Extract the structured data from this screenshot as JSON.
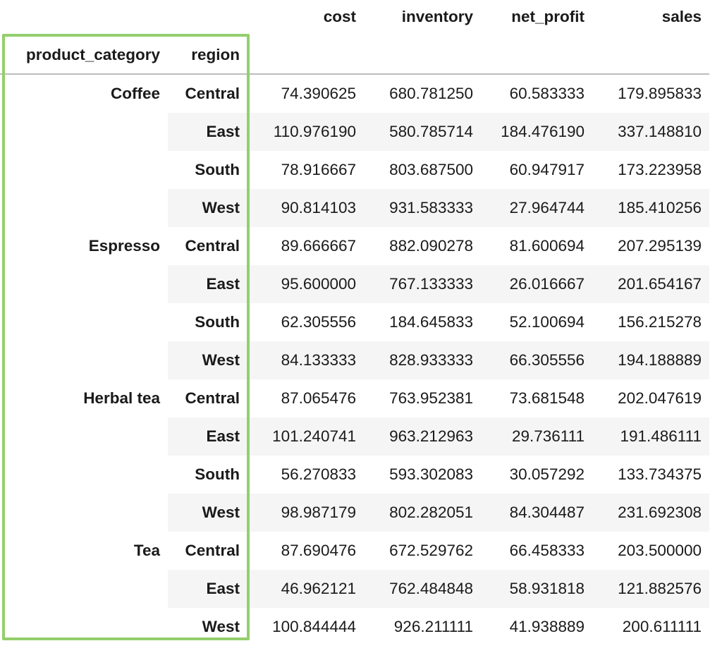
{
  "columns": {
    "cost": "cost",
    "inventory": "inventory",
    "net_profit": "net_profit",
    "sales": "sales"
  },
  "index_names": {
    "level0": "product_category",
    "level1": "region"
  },
  "rows": [
    {
      "category": "Coffee",
      "region": "Central",
      "cost": "74.390625",
      "inventory": "680.781250",
      "net_profit": "60.583333",
      "sales": "179.895833"
    },
    {
      "category": "",
      "region": "East",
      "cost": "110.976190",
      "inventory": "580.785714",
      "net_profit": "184.476190",
      "sales": "337.148810"
    },
    {
      "category": "",
      "region": "South",
      "cost": "78.916667",
      "inventory": "803.687500",
      "net_profit": "60.947917",
      "sales": "173.223958"
    },
    {
      "category": "",
      "region": "West",
      "cost": "90.814103",
      "inventory": "931.583333",
      "net_profit": "27.964744",
      "sales": "185.410256"
    },
    {
      "category": "Espresso",
      "region": "Central",
      "cost": "89.666667",
      "inventory": "882.090278",
      "net_profit": "81.600694",
      "sales": "207.295139"
    },
    {
      "category": "",
      "region": "East",
      "cost": "95.600000",
      "inventory": "767.133333",
      "net_profit": "26.016667",
      "sales": "201.654167"
    },
    {
      "category": "",
      "region": "South",
      "cost": "62.305556",
      "inventory": "184.645833",
      "net_profit": "52.100694",
      "sales": "156.215278"
    },
    {
      "category": "",
      "region": "West",
      "cost": "84.133333",
      "inventory": "828.933333",
      "net_profit": "66.305556",
      "sales": "194.188889"
    },
    {
      "category": "Herbal tea",
      "region": "Central",
      "cost": "87.065476",
      "inventory": "763.952381",
      "net_profit": "73.681548",
      "sales": "202.047619"
    },
    {
      "category": "",
      "region": "East",
      "cost": "101.240741",
      "inventory": "963.212963",
      "net_profit": "29.736111",
      "sales": "191.486111"
    },
    {
      "category": "",
      "region": "South",
      "cost": "56.270833",
      "inventory": "593.302083",
      "net_profit": "30.057292",
      "sales": "133.734375"
    },
    {
      "category": "",
      "region": "West",
      "cost": "98.987179",
      "inventory": "802.282051",
      "net_profit": "84.304487",
      "sales": "231.692308"
    },
    {
      "category": "Tea",
      "region": "Central",
      "cost": "87.690476",
      "inventory": "672.529762",
      "net_profit": "66.458333",
      "sales": "203.500000"
    },
    {
      "category": "",
      "region": "East",
      "cost": "46.962121",
      "inventory": "762.484848",
      "net_profit": "58.931818",
      "sales": "121.882576"
    },
    {
      "category": "",
      "region": "West",
      "cost": "100.844444",
      "inventory": "926.211111",
      "net_profit": "41.938889",
      "sales": "200.611111"
    }
  ],
  "colors": {
    "highlight_border": "#93cf6c",
    "stripe": "#f5f5f5",
    "header_rule": "#bdbdbd",
    "text": "#1a1a1a"
  }
}
